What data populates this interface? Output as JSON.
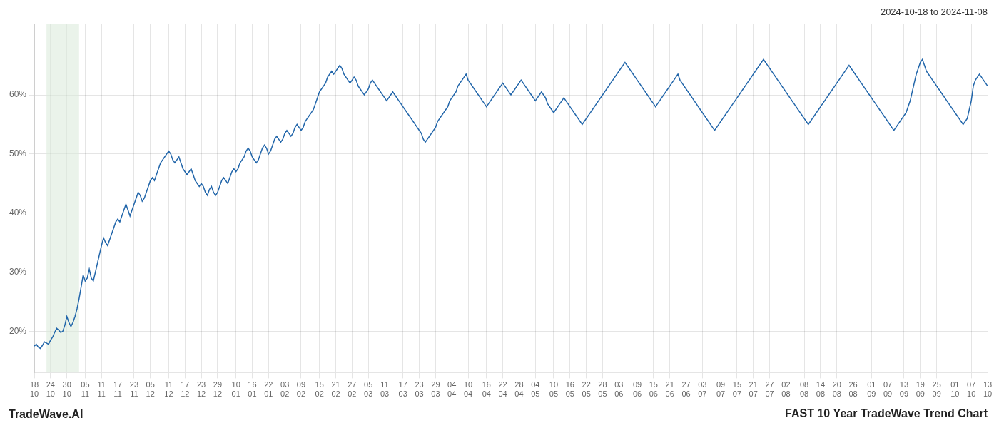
{
  "chart_data": {
    "type": "line",
    "title": "FAST 10 Year TradeWave Trend Chart",
    "subtitle": "2024-10-18 to 2024-11-08",
    "annotation": "TradeWave.AI",
    "color": "#2266aa",
    "grid": true,
    "ylim": [
      13,
      72
    ],
    "yticks": [
      {
        "value": 20,
        "label": "20%"
      },
      {
        "value": 30,
        "label": "30%"
      },
      {
        "value": 40,
        "label": "40%"
      },
      {
        "value": 50,
        "label": "50%"
      },
      {
        "value": 60,
        "label": "60%"
      }
    ],
    "shade": {
      "range": [
        6,
        22
      ],
      "color": "#d8ead8"
    },
    "categories": [
      "18\n10",
      null,
      null,
      null,
      null,
      null,
      null,
      null,
      "24\n10",
      null,
      null,
      null,
      null,
      null,
      null,
      null,
      "30\n10",
      null,
      null,
      null,
      null,
      null,
      null,
      null,
      null,
      "05\n11",
      null,
      null,
      null,
      null,
      null,
      null,
      null,
      "11\n11",
      null,
      null,
      null,
      null,
      null,
      null,
      null,
      "17\n11",
      null,
      null,
      null,
      null,
      null,
      null,
      null,
      "23\n11",
      null,
      null,
      null,
      null,
      null,
      null,
      null,
      "05\n12",
      null,
      null,
      null,
      null,
      null,
      null,
      null,
      null,
      "11\n12",
      null,
      null,
      null,
      null,
      null,
      null,
      null,
      "17\n12",
      null,
      null,
      null,
      null,
      null,
      null,
      null,
      "23\n12",
      null,
      null,
      null,
      null,
      null,
      null,
      null,
      "29\n12",
      null,
      null,
      null,
      null,
      null,
      null,
      null,
      null,
      "10\n01",
      null,
      null,
      null,
      null,
      null,
      null,
      null,
      "16\n01",
      null,
      null,
      null,
      null,
      null,
      null,
      null,
      "22\n01",
      null,
      null,
      null,
      null,
      null,
      null,
      null,
      "03\n02",
      null,
      null,
      null,
      null,
      null,
      null,
      null,
      "09\n02",
      null,
      null,
      null,
      null,
      null,
      null,
      null,
      null,
      "15\n02",
      null,
      null,
      null,
      null,
      null,
      null,
      null,
      "21\n02",
      null,
      null,
      null,
      null,
      null,
      null,
      null,
      "27\n02",
      null,
      null,
      null,
      null,
      null,
      null,
      null,
      "05\n03",
      null,
      null,
      null,
      null,
      null,
      null,
      null,
      "11\n03",
      null,
      null,
      null,
      null,
      null,
      null,
      null,
      null,
      "17\n03",
      null,
      null,
      null,
      null,
      null,
      null,
      null,
      "23\n03",
      null,
      null,
      null,
      null,
      null,
      null,
      null,
      "29\n03",
      null,
      null,
      null,
      null,
      null,
      null,
      null,
      "04\n04",
      null,
      null,
      null,
      null,
      null,
      null,
      null,
      "10\n04",
      null,
      null,
      null,
      null,
      null,
      null,
      null,
      null,
      "16\n04",
      null,
      null,
      null,
      null,
      null,
      null,
      null,
      "22\n04",
      null,
      null,
      null,
      null,
      null,
      null,
      null,
      "28\n04",
      null,
      null,
      null,
      null,
      null,
      null,
      null,
      "04\n05",
      null,
      null,
      null,
      null,
      null,
      null,
      null,
      null,
      "10\n05",
      null,
      null,
      null,
      null,
      null,
      null,
      null,
      "16\n05",
      null,
      null,
      null,
      null,
      null,
      null,
      null,
      "22\n05",
      null,
      null,
      null,
      null,
      null,
      null,
      null,
      "28\n05",
      null,
      null,
      null,
      null,
      null,
      null,
      null,
      "03\n06",
      null,
      null,
      null,
      null,
      null,
      null,
      null,
      null,
      "09\n06",
      null,
      null,
      null,
      null,
      null,
      null,
      null,
      "15\n06",
      null,
      null,
      null,
      null,
      null,
      null,
      null,
      "21\n06",
      null,
      null,
      null,
      null,
      null,
      null,
      null,
      "27\n06",
      null,
      null,
      null,
      null,
      null,
      null,
      null,
      "03\n07",
      null,
      null,
      null,
      null,
      null,
      null,
      null,
      null,
      "09\n07",
      null,
      null,
      null,
      null,
      null,
      null,
      null,
      "15\n07",
      null,
      null,
      null,
      null,
      null,
      null,
      null,
      "21\n07",
      null,
      null,
      null,
      null,
      null,
      null,
      null,
      "27\n07",
      null,
      null,
      null,
      null,
      null,
      null,
      null,
      "02\n08",
      null,
      null,
      null,
      null,
      null,
      null,
      null,
      null,
      "08\n08",
      null,
      null,
      null,
      null,
      null,
      null,
      null,
      "14\n08",
      null,
      null,
      null,
      null,
      null,
      null,
      null,
      "20\n08",
      null,
      null,
      null,
      null,
      null,
      null,
      null,
      "26\n08",
      null,
      null,
      null,
      null,
      null,
      null,
      null,
      null,
      "01\n09",
      null,
      null,
      null,
      null,
      null,
      null,
      null,
      "07\n09",
      null,
      null,
      null,
      null,
      null,
      null,
      null,
      "13\n09",
      null,
      null,
      null,
      null,
      null,
      null,
      null,
      "19\n09",
      null,
      null,
      null,
      null,
      null,
      null,
      null,
      "25\n09",
      null,
      null,
      null,
      null,
      null,
      null,
      null,
      null,
      "01\n10",
      null,
      null,
      null,
      null,
      null,
      null,
      null,
      "07\n10",
      null,
      null,
      null,
      null,
      null,
      null,
      null,
      "13\n10"
    ],
    "values": [
      17.5,
      17.8,
      17.3,
      17.1,
      17.6,
      18.2,
      18.0,
      17.8,
      18.5,
      19.0,
      19.8,
      20.5,
      20.2,
      19.8,
      20.0,
      21.0,
      22.5,
      21.5,
      20.8,
      21.5,
      22.5,
      23.8,
      25.5,
      27.5,
      29.5,
      28.5,
      29.0,
      30.5,
      29.0,
      28.5,
      30.0,
      31.5,
      33.0,
      34.5,
      35.8,
      35.0,
      34.5,
      35.5,
      36.5,
      37.5,
      38.5,
      39.0,
      38.5,
      39.5,
      40.5,
      41.5,
      40.5,
      39.5,
      40.5,
      41.5,
      42.5,
      43.5,
      43.0,
      42.0,
      42.5,
      43.5,
      44.5,
      45.5,
      46.0,
      45.5,
      46.5,
      47.5,
      48.5,
      49.0,
      49.5,
      50.0,
      50.5,
      50.0,
      49.0,
      48.5,
      49.0,
      49.5,
      48.5,
      47.5,
      47.0,
      46.5,
      47.0,
      47.5,
      46.5,
      45.5,
      45.0,
      44.5,
      45.0,
      44.5,
      43.5,
      43.0,
      44.0,
      44.5,
      43.5,
      43.0,
      43.5,
      44.5,
      45.5,
      46.0,
      45.5,
      45.0,
      46.0,
      47.0,
      47.5,
      47.0,
      47.5,
      48.5,
      49.0,
      49.5,
      50.5,
      51.0,
      50.5,
      49.5,
      49.0,
      48.5,
      49.0,
      50.0,
      51.0,
      51.5,
      51.0,
      50.0,
      50.5,
      51.5,
      52.5,
      53.0,
      52.5,
      52.0,
      52.5,
      53.5,
      54.0,
      53.5,
      53.0,
      53.5,
      54.5,
      55.0,
      54.5,
      54.0,
      54.5,
      55.5,
      56.0,
      56.5,
      57.0,
      57.5,
      58.5,
      59.5,
      60.5,
      61.0,
      61.5,
      62.0,
      63.0,
      63.5,
      64.0,
      63.5,
      64.0,
      64.5,
      65.0,
      64.5,
      63.5,
      63.0,
      62.5,
      62.0,
      62.5,
      63.0,
      62.5,
      61.5,
      61.0,
      60.5,
      60.0,
      60.5,
      61.0,
      62.0,
      62.5,
      62.0,
      61.5,
      61.0,
      60.5,
      60.0,
      59.5,
      59.0,
      59.5,
      60.0,
      60.5,
      60.0,
      59.5,
      59.0,
      58.5,
      58.0,
      57.5,
      57.0,
      56.5,
      56.0,
      55.5,
      55.0,
      54.5,
      54.0,
      53.5,
      52.5,
      52.0,
      52.5,
      53.0,
      53.5,
      54.0,
      54.5,
      55.5,
      56.0,
      56.5,
      57.0,
      57.5,
      58.0,
      59.0,
      59.5,
      60.0,
      60.5,
      61.5,
      62.0,
      62.5,
      63.0,
      63.5,
      62.5,
      62.0,
      61.5,
      61.0,
      60.5,
      60.0,
      59.5,
      59.0,
      58.5,
      58.0,
      58.5,
      59.0,
      59.5,
      60.0,
      60.5,
      61.0,
      61.5,
      62.0,
      61.5,
      61.0,
      60.5,
      60.0,
      60.5,
      61.0,
      61.5,
      62.0,
      62.5,
      62.0,
      61.5,
      61.0,
      60.5,
      60.0,
      59.5,
      59.0,
      59.5,
      60.0,
      60.5,
      60.0,
      59.5,
      58.5,
      58.0,
      57.5,
      57.0,
      57.5,
      58.0,
      58.5,
      59.0,
      59.5,
      59.0,
      58.5,
      58.0,
      57.5,
      57.0,
      56.5,
      56.0,
      55.5,
      55.0,
      55.5,
      56.0,
      56.5,
      57.0,
      57.5,
      58.0,
      58.5,
      59.0,
      59.5,
      60.0,
      60.5,
      61.0,
      61.5,
      62.0,
      62.5,
      63.0,
      63.5,
      64.0,
      64.5,
      65.0,
      65.5,
      65.0,
      64.5,
      64.0,
      63.5,
      63.0,
      62.5,
      62.0,
      61.5,
      61.0,
      60.5,
      60.0,
      59.5,
      59.0,
      58.5,
      58.0,
      58.5,
      59.0,
      59.5,
      60.0,
      60.5,
      61.0,
      61.5,
      62.0,
      62.5,
      63.0,
      63.5,
      62.5,
      62.0,
      61.5,
      61.0,
      60.5,
      60.0,
      59.5,
      59.0,
      58.5,
      58.0,
      57.5,
      57.0,
      56.5,
      56.0,
      55.5,
      55.0,
      54.5,
      54.0,
      54.5,
      55.0,
      55.5,
      56.0,
      56.5,
      57.0,
      57.5,
      58.0,
      58.5,
      59.0,
      59.5,
      60.0,
      60.5,
      61.0,
      61.5,
      62.0,
      62.5,
      63.0,
      63.5,
      64.0,
      64.5,
      65.0,
      65.5,
      66.0,
      65.5,
      65.0,
      64.5,
      64.0,
      63.5,
      63.0,
      62.5,
      62.0,
      61.5,
      61.0,
      60.5,
      60.0,
      59.5,
      59.0,
      58.5,
      58.0,
      57.5,
      57.0,
      56.5,
      56.0,
      55.5,
      55.0,
      55.5,
      56.0,
      56.5,
      57.0,
      57.5,
      58.0,
      58.5,
      59.0,
      59.5,
      60.0,
      60.5,
      61.0,
      61.5,
      62.0,
      62.5,
      63.0,
      63.5,
      64.0,
      64.5,
      65.0,
      64.5,
      64.0,
      63.5,
      63.0,
      62.5,
      62.0,
      61.5,
      61.0,
      60.5,
      60.0,
      59.5,
      59.0,
      58.5,
      58.0,
      57.5,
      57.0,
      56.5,
      56.0,
      55.5,
      55.0,
      54.5,
      54.0,
      54.5,
      55.0,
      55.5,
      56.0,
      56.5,
      57.0,
      58.0,
      59.0,
      60.5,
      62.0,
      63.5,
      64.5,
      65.5,
      66.0,
      65.0,
      64.0,
      63.5,
      63.0,
      62.5,
      62.0,
      61.5,
      61.0,
      60.5,
      60.0,
      59.5,
      59.0,
      58.5,
      58.0,
      57.5,
      57.0,
      56.5,
      56.0,
      55.5,
      55.0,
      55.5,
      56.0,
      57.5,
      59.0,
      61.5,
      62.5,
      63.0,
      63.5,
      63.0,
      62.5,
      62.0,
      61.5
    ]
  }
}
